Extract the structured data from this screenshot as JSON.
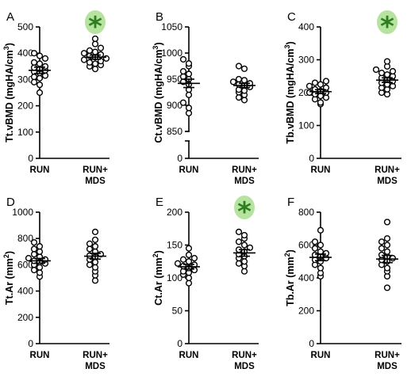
{
  "colors": {
    "significance_star": "#2e7d1e",
    "significance_halo": "#b6e3a0",
    "points": "#000000"
  },
  "chart_data": [
    {
      "panel": "A",
      "type": "scatter",
      "ylabel_parts": [
        "Tt.vBMD (mgHA/cm",
        "3",
        ")"
      ],
      "yticks": [
        0,
        100,
        200,
        300,
        400,
        500
      ],
      "ylim": [
        0,
        500
      ],
      "axis_break": false,
      "categories": [
        [
          "RUN"
        ],
        [
          "RUN+",
          "MDS"
        ]
      ],
      "groups": [
        {
          "values": [
            250,
            280,
            290,
            305,
            310,
            315,
            325,
            330,
            335,
            340,
            345,
            350,
            360,
            365,
            380,
            390,
            400
          ],
          "mean": 335,
          "sem": 12
        },
        {
          "values": [
            340,
            350,
            355,
            360,
            365,
            370,
            375,
            380,
            385,
            390,
            395,
            400,
            405,
            410,
            420,
            435,
            455
          ],
          "mean": 385,
          "sem": 8
        }
      ],
      "significant": [
        false,
        true
      ],
      "star": "*"
    },
    {
      "panel": "B",
      "type": "scatter",
      "ylabel_parts": [
        "Ct.vBMD (mgHA/cm",
        "3",
        ")"
      ],
      "yticks": [
        0,
        850,
        900,
        950,
        1000,
        1050
      ],
      "ylim": [
        850,
        1050
      ],
      "axis_break": true,
      "categories": [
        [
          "RUN"
        ],
        [
          "RUN+",
          "MDS"
        ]
      ],
      "groups": [
        {
          "values": [
            885,
            895,
            905,
            920,
            930,
            940,
            945,
            950,
            955,
            960,
            965,
            975,
            980,
            988
          ],
          "mean": 942,
          "sem": 8
        },
        {
          "values": [
            910,
            915,
            920,
            925,
            928,
            930,
            935,
            938,
            940,
            942,
            945,
            948,
            950,
            970,
            975
          ],
          "mean": 938,
          "sem": 4
        }
      ],
      "significant": [
        false,
        false
      ]
    },
    {
      "panel": "C",
      "type": "scatter",
      "ylabel_parts": [
        "Tb.vBMD (mgHA/cm",
        "3",
        ")"
      ],
      "yticks": [
        0,
        100,
        200,
        300,
        400
      ],
      "ylim": [
        0,
        400
      ],
      "axis_break": false,
      "categories": [
        [
          "RUN"
        ],
        [
          "RUN+",
          "MDS"
        ]
      ],
      "groups": [
        {
          "values": [
            165,
            170,
            180,
            185,
            190,
            195,
            200,
            200,
            205,
            210,
            215,
            220,
            225,
            230,
            235
          ],
          "mean": 203,
          "sem": 6
        },
        {
          "values": [
            195,
            200,
            210,
            215,
            220,
            225,
            230,
            235,
            240,
            245,
            250,
            255,
            260,
            265,
            270,
            280,
            295
          ],
          "mean": 238,
          "sem": 7
        }
      ],
      "significant": [
        false,
        true
      ],
      "star": "*"
    },
    {
      "panel": "D",
      "type": "scatter",
      "ylabel_parts": [
        "Tt.Ar (mm",
        "2",
        ")"
      ],
      "yticks": [
        0,
        200,
        400,
        600,
        800,
        1000
      ],
      "ylim": [
        0,
        1000
      ],
      "axis_break": false,
      "categories": [
        [
          "RUN"
        ],
        [
          "RUN+",
          "MDS"
        ]
      ],
      "groups": [
        {
          "values": [
            510,
            540,
            560,
            580,
            600,
            610,
            620,
            630,
            640,
            650,
            660,
            680,
            700,
            720,
            740,
            770
          ],
          "mean": 630,
          "sem": 18
        },
        {
          "values": [
            480,
            520,
            550,
            580,
            600,
            620,
            640,
            660,
            670,
            680,
            700,
            720,
            740,
            760,
            790,
            850
          ],
          "mean": 665,
          "sem": 22
        }
      ],
      "significant": [
        false,
        false
      ]
    },
    {
      "panel": "E",
      "type": "scatter",
      "ylabel_parts": [
        "Ct.Ar (mm",
        "2",
        ")"
      ],
      "yticks": [
        0,
        50,
        100,
        150,
        200
      ],
      "ylim": [
        0,
        200
      ],
      "axis_break": false,
      "categories": [
        [
          "RUN"
        ],
        [
          "RUN+",
          "MDS"
        ]
      ],
      "groups": [
        {
          "values": [
            92,
            100,
            105,
            108,
            110,
            112,
            115,
            118,
            120,
            122,
            125,
            128,
            130,
            135,
            145
          ],
          "mean": 117,
          "sem": 3.5
        },
        {
          "values": [
            110,
            118,
            122,
            125,
            130,
            133,
            136,
            140,
            143,
            146,
            150,
            155,
            160,
            165,
            170
          ],
          "mean": 138,
          "sem": 5
        }
      ],
      "significant": [
        false,
        true
      ],
      "star": "*"
    },
    {
      "panel": "F",
      "type": "scatter",
      "ylabel_parts": [
        "Tb.Ar (mm",
        "2",
        ")"
      ],
      "yticks": [
        0,
        200,
        400,
        600,
        800
      ],
      "ylim": [
        0,
        800
      ],
      "axis_break": false,
      "categories": [
        [
          "RUN"
        ],
        [
          "RUN+",
          "MDS"
        ]
      ],
      "groups": [
        {
          "values": [
            410,
            430,
            460,
            480,
            500,
            510,
            520,
            530,
            540,
            550,
            560,
            580,
            600,
            620,
            690
          ],
          "mean": 525,
          "sem": 20
        },
        {
          "values": [
            340,
            410,
            440,
            460,
            480,
            500,
            510,
            520,
            530,
            540,
            560,
            580,
            600,
            620,
            640,
            740
          ],
          "mean": 515,
          "sem": 22
        }
      ],
      "significant": [
        false,
        false
      ]
    }
  ]
}
